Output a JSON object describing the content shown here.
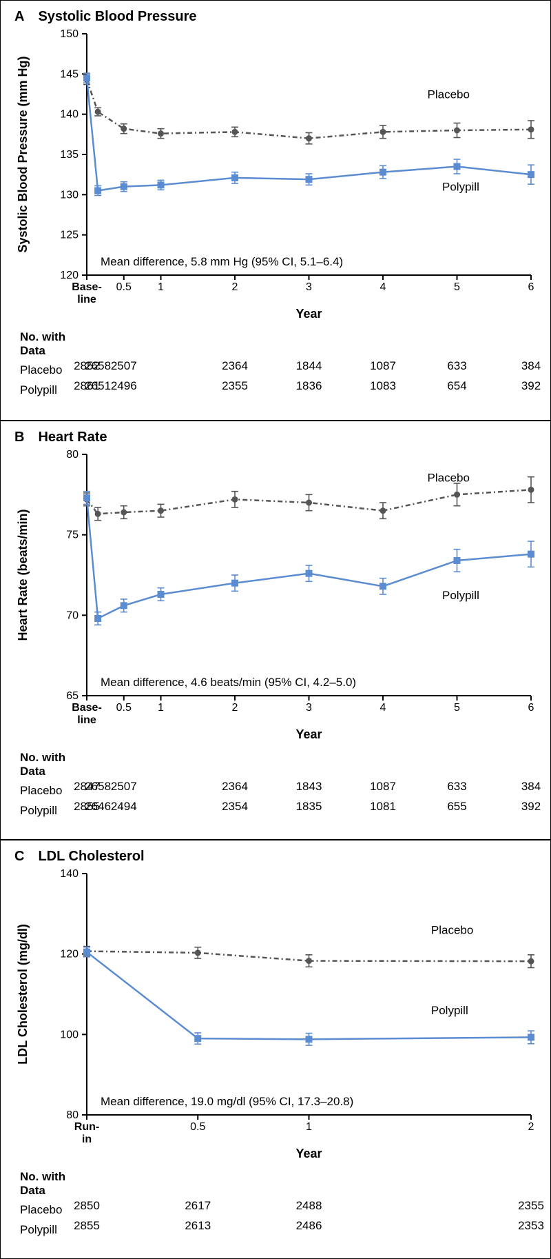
{
  "colors": {
    "placebo_stroke": "#555555",
    "placebo_fill": "#555555",
    "polypill_stroke": "#5b8bd0",
    "polypill_fill": "#5b8bd0",
    "axis": "#000000",
    "text": "#000000"
  },
  "fonts": {
    "title": 20,
    "axis_label": 18,
    "tick": 16,
    "annotation": 17,
    "table": 17
  },
  "panels": [
    {
      "id": "A",
      "title": "A Systolic Blood Pressure",
      "ylabel": "Systolic Blood Pressure (mm Hg)",
      "xlabel": "Year",
      "ylim": [
        120,
        150
      ],
      "ytick_step": 5,
      "x_categories": [
        "Base-\nline",
        "",
        "0.5",
        "1",
        "2",
        "3",
        "4",
        "5",
        "6"
      ],
      "x_positions": [
        0,
        0.15,
        0.5,
        1,
        2,
        3,
        4,
        5,
        6
      ],
      "annotation": "Mean difference, 5.8 mm Hg (95% CI, 5.1–6.4)",
      "series": [
        {
          "name": "Placebo",
          "label_x": 4.6,
          "label_y": 142,
          "dash": true,
          "marker": "circle",
          "color": "#555555",
          "y": [
            144.3,
            140.3,
            138.2,
            137.6,
            137.8,
            137.0,
            137.8,
            138.0,
            138.1
          ],
          "err": [
            0.6,
            0.5,
            0.6,
            0.6,
            0.6,
            0.7,
            0.8,
            0.9,
            1.1
          ]
        },
        {
          "name": "Polypill",
          "label_x": 4.8,
          "label_y": 130.5,
          "dash": false,
          "marker": "square",
          "color": "#5b8bd0",
          "y": [
            144.5,
            130.5,
            131.0,
            131.2,
            132.1,
            131.9,
            132.8,
            133.5,
            132.5
          ],
          "err": [
            0.6,
            0.6,
            0.6,
            0.6,
            0.7,
            0.7,
            0.8,
            0.9,
            1.2
          ]
        }
      ],
      "ntable": {
        "header": "No. with\nData",
        "rows": [
          {
            "label": "Placebo",
            "positions": [
              0,
              0.15,
              0.5,
              1,
              2,
              3,
              4,
              5,
              6
            ],
            "values": [
              "2852",
              "2658",
              "2507",
              "",
              "2364",
              "1844",
              "1087",
              "633",
              "384"
            ]
          },
          {
            "label": "Polypill",
            "positions": [
              0,
              0.15,
              0.5,
              1,
              2,
              3,
              4,
              5,
              6
            ],
            "values": [
              "2861",
              "2651",
              "2496",
              "",
              "2355",
              "1836",
              "1083",
              "654",
              "392"
            ]
          }
        ]
      }
    },
    {
      "id": "B",
      "title": "B Heart Rate",
      "ylabel": "Heart Rate (beats/min)",
      "xlabel": "Year",
      "ylim": [
        65,
        80
      ],
      "ytick_step": 5,
      "x_categories": [
        "Base-\nline",
        "",
        "0.5",
        "1",
        "2",
        "3",
        "4",
        "5",
        "6"
      ],
      "x_positions": [
        0,
        0.15,
        0.5,
        1,
        2,
        3,
        4,
        5,
        6
      ],
      "annotation": "Mean difference, 4.6 beats/min (95% CI, 4.2–5.0)",
      "series": [
        {
          "name": "Placebo",
          "label_x": 4.6,
          "label_y": 78.3,
          "dash": true,
          "marker": "circle",
          "color": "#555555",
          "y": [
            77.2,
            76.3,
            76.4,
            76.5,
            77.2,
            77.0,
            76.5,
            77.5,
            77.8
          ],
          "err": [
            0.4,
            0.4,
            0.4,
            0.4,
            0.5,
            0.5,
            0.5,
            0.7,
            0.8
          ]
        },
        {
          "name": "Polypill",
          "label_x": 4.8,
          "label_y": 71.0,
          "dash": false,
          "marker": "square",
          "color": "#5b8bd0",
          "y": [
            77.3,
            69.8,
            70.6,
            71.3,
            72.0,
            72.6,
            71.8,
            73.4,
            73.8
          ],
          "err": [
            0.4,
            0.4,
            0.4,
            0.4,
            0.5,
            0.5,
            0.5,
            0.7,
            0.8
          ]
        }
      ],
      "ntable": {
        "header": "No. with\nData",
        "rows": [
          {
            "label": "Placebo",
            "positions": [
              0,
              0.15,
              0.5,
              1,
              2,
              3,
              4,
              5,
              6
            ],
            "values": [
              "2847",
              "2658",
              "2507",
              "",
              "2364",
              "1843",
              "1087",
              "633",
              "384"
            ]
          },
          {
            "label": "Polypill",
            "positions": [
              0,
              0.15,
              0.5,
              1,
              2,
              3,
              4,
              5,
              6
            ],
            "values": [
              "2855",
              "2646",
              "2494",
              "",
              "2354",
              "1835",
              "1081",
              "655",
              "392"
            ]
          }
        ]
      }
    },
    {
      "id": "C",
      "title": "C LDL Cholesterol",
      "ylabel": "LDL Cholesterol (mg/dl)",
      "xlabel": "Year",
      "ylim": [
        80,
        140
      ],
      "ytick_step": 20,
      "x_categories": [
        "Run-\nin",
        "0.5",
        "1",
        "2"
      ],
      "x_positions": [
        0,
        0.5,
        1,
        2
      ],
      "annotation": "Mean difference, 19.0 mg/dl (95% CI, 17.3–20.8)",
      "series": [
        {
          "name": "Placebo",
          "label_x": 1.55,
          "label_y": 125,
          "dash": true,
          "marker": "circle",
          "color": "#555555",
          "y": [
            120.7,
            120.3,
            118.3,
            118.2
          ],
          "err": [
            1.2,
            1.4,
            1.5,
            1.6
          ]
        },
        {
          "name": "Polypill",
          "label_x": 1.55,
          "label_y": 105,
          "dash": false,
          "marker": "square",
          "color": "#5b8bd0",
          "y": [
            120.5,
            99.0,
            98.8,
            99.3
          ],
          "err": [
            1.2,
            1.4,
            1.5,
            1.6
          ]
        }
      ],
      "ntable": {
        "header": "No. with\nData",
        "rows": [
          {
            "label": "Placebo",
            "positions": [
              0,
              0.5,
              1,
              2
            ],
            "values": [
              "2850",
              "2617",
              "2488",
              "2355"
            ]
          },
          {
            "label": "Polypill",
            "positions": [
              0,
              0.5,
              1,
              2
            ],
            "values": [
              "2855",
              "2613",
              "2486",
              "2353"
            ]
          }
        ]
      }
    }
  ]
}
